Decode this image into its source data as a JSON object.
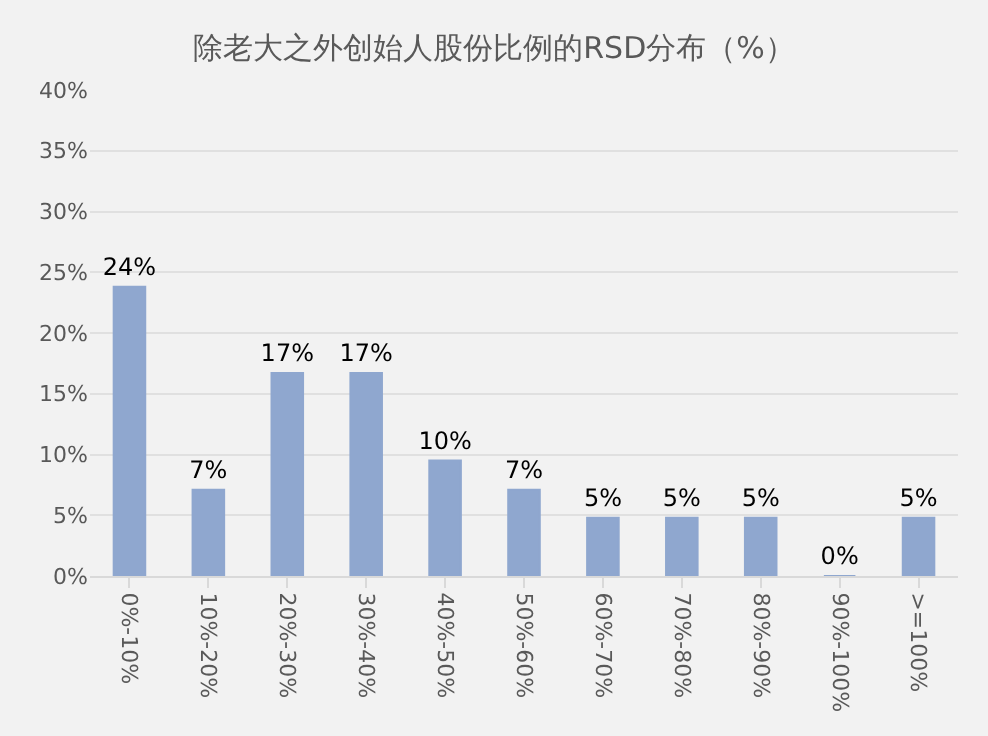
{
  "chart_data": {
    "type": "bar",
    "title": "除老大之外创始人股份比例的RSD分布（%）",
    "categories": [
      "0%-10%",
      "10%-20%",
      "20%-30%",
      "30%-40%",
      "40%-50%",
      "50%-60%",
      "60%-70%",
      "70%-80%",
      "80%-90%",
      "90%-100%",
      ">=100%"
    ],
    "values": [
      23.8,
      7.1,
      16.7,
      16.7,
      9.5,
      7.1,
      4.8,
      4.8,
      4.8,
      0,
      4.8
    ],
    "value_labels": [
      "24%",
      "7%",
      "17%",
      "17%",
      "10%",
      "7%",
      "5%",
      "5%",
      "5%",
      "0%",
      "5%"
    ],
    "color": "#8fa7cf",
    "ylim": [
      0,
      40
    ],
    "yticks": [
      {
        "value": 0,
        "label": "0%"
      },
      {
        "value": 5,
        "label": "5%"
      },
      {
        "value": 10,
        "label": "10%"
      },
      {
        "value": 15,
        "label": "15%"
      },
      {
        "value": 20,
        "label": "20%"
      },
      {
        "value": 25,
        "label": "25%"
      },
      {
        "value": 30,
        "label": "30%"
      },
      {
        "value": 35,
        "label": "35%"
      },
      {
        "value": 40,
        "label": "40%"
      }
    ],
    "grid": "y"
  }
}
